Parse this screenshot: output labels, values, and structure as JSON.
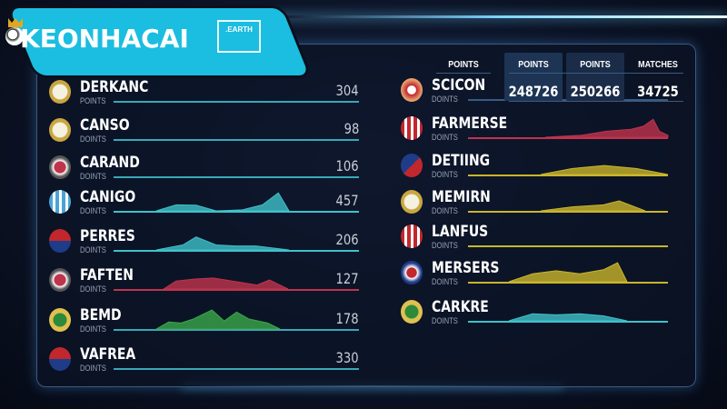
{
  "logo": {
    "text": "KEONHACAI",
    "badge": ".EARTH"
  },
  "colors": {
    "teal": "#3fc1c9",
    "red": "#c0334d",
    "green": "#3aa84a",
    "yellow": "#c9b52c",
    "line_teal": "#3aa8b8"
  },
  "left": [
    {
      "name": "DERKANC",
      "sub": "POINTS",
      "value": "304",
      "crest": "real-madrid-crest",
      "spark": null,
      "color": "#3aa8b8"
    },
    {
      "name": "CANSO",
      "sub": "DOINTS",
      "value": "98",
      "crest": "real-madrid-crest",
      "spark": null,
      "color": "#3aa8b8"
    },
    {
      "name": "CARAND",
      "sub": "DOINTS",
      "value": "106",
      "crest": "red-white-crest",
      "spark": null,
      "color": "#3aa8b8"
    },
    {
      "name": "CANIGO",
      "sub": "DOINTS",
      "value": "457",
      "crest": "blue-stripe-crest",
      "spark": "teal",
      "color": "#3fc1c9"
    },
    {
      "name": "PERRES",
      "sub": "DOINTS",
      "value": "206",
      "crest": "barcelona-crest",
      "spark": "teal",
      "color": "#3fc1c9"
    },
    {
      "name": "FAFTEN",
      "sub": "DOINTS",
      "value": "127",
      "crest": "red-white-crest",
      "spark": "red",
      "color": "#c0334d"
    },
    {
      "name": "BEMD",
      "sub": "DOINTS",
      "value": "178",
      "crest": "green-gold-crest",
      "spark": "green",
      "color": "#3aa8b8"
    },
    {
      "name": "VAFREA",
      "sub": "DOINTS",
      "value": "330",
      "crest": "barcelona-crest",
      "spark": null,
      "color": "#3aa8b8"
    }
  ],
  "stats": {
    "headers": [
      "POINTS",
      "POINTS",
      "POINTS",
      "MATCHES"
    ],
    "values": [
      "248726",
      "250266",
      "34725"
    ]
  },
  "right": [
    {
      "name": "SCICON",
      "sub": "DOINTS",
      "crest": "red-cross-crest",
      "spark": null,
      "color": "#3a5a80"
    },
    {
      "name": "FARMERSE",
      "sub": "DOINTS",
      "crest": "red-stripe-crest",
      "spark": "red",
      "color": "#c0334d"
    },
    {
      "name": "DETIING",
      "sub": "DOINTS",
      "crest": "red-blue-crest",
      "spark": "yellow",
      "color": "#c9b52c"
    },
    {
      "name": "MEMIRN",
      "sub": "DOINTS",
      "crest": "real-madrid-crest",
      "spark": "yellow",
      "color": "#c9b52c"
    },
    {
      "name": "LANFUS",
      "sub": "DOINTS",
      "crest": "red-stripe-crest",
      "spark": null,
      "color": "#c9b52c"
    },
    {
      "name": "MERSERS",
      "sub": "DOINTS",
      "crest": "blue-red-crest",
      "spark": "yellow",
      "color": "#c9b52c"
    },
    {
      "name": "CARKRE",
      "sub": "DOINTS",
      "crest": "green-gold-crest",
      "spark": "teal",
      "color": "#3fc1c9"
    }
  ]
}
